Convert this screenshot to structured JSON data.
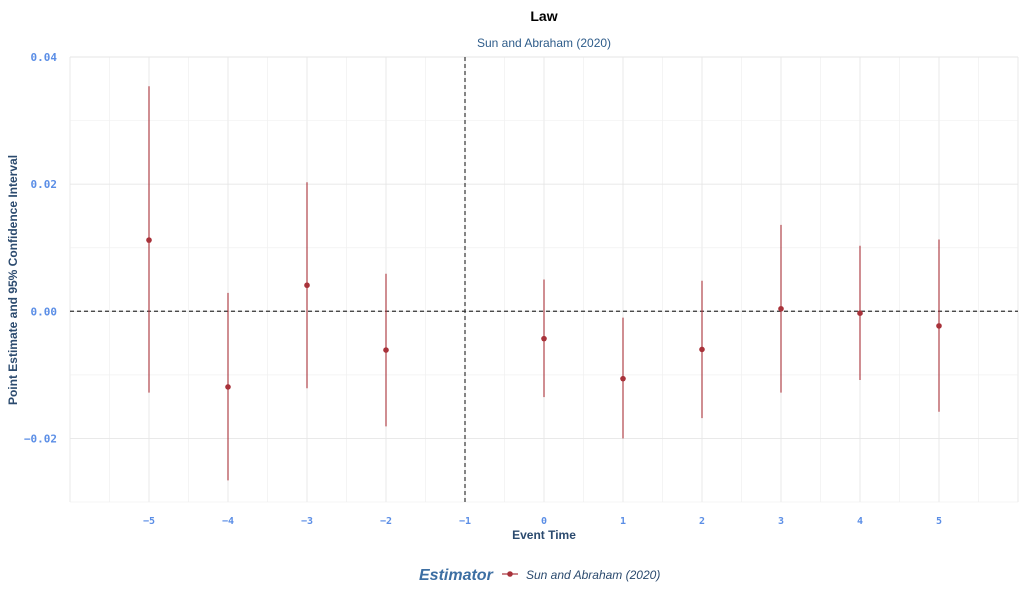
{
  "chart_data": {
    "type": "scatter",
    "title": "Law",
    "subtitle": "Sun and Abraham (2020)",
    "xlabel": "Event Time",
    "ylabel": "Point Estimate and 95% Confidence Interval",
    "xlim": [
      -6,
      6
    ],
    "ylim": [
      -0.03,
      0.04
    ],
    "x_ticks": [
      -5,
      -4,
      -3,
      -2,
      -1,
      0,
      1,
      2,
      3,
      4,
      5
    ],
    "x_tick_labels": [
      "−5",
      "−4",
      "−3",
      "−2",
      "−1",
      "0",
      "1",
      "2",
      "3",
      "4",
      "5"
    ],
    "y_ticks": [
      -0.02,
      0.0,
      0.02,
      0.04
    ],
    "y_tick_labels": [
      "−0.02",
      "0.00",
      "0.02",
      "0.04"
    ],
    "reference_lines": {
      "vertical_x": -1,
      "horizontal_y": 0
    },
    "grid": true,
    "legend": {
      "title": "Estimator",
      "position": "bottom",
      "entries": [
        "Sun and Abraham (2020)"
      ]
    },
    "series": [
      {
        "name": "Sun and Abraham (2020)",
        "color": "#a8323a",
        "points": [
          {
            "x": -5,
            "y": 0.0112,
            "lo": -0.0128,
            "hi": 0.0354
          },
          {
            "x": -4,
            "y": -0.0119,
            "lo": -0.0266,
            "hi": 0.0029
          },
          {
            "x": -3,
            "y": 0.0041,
            "lo": -0.0121,
            "hi": 0.0203
          },
          {
            "x": -2,
            "y": -0.0061,
            "lo": -0.0181,
            "hi": 0.0059
          },
          {
            "x": 0,
            "y": -0.0043,
            "lo": -0.0135,
            "hi": 0.005
          },
          {
            "x": 1,
            "y": -0.0106,
            "lo": -0.02,
            "hi": -0.001
          },
          {
            "x": 2,
            "y": -0.006,
            "lo": -0.0168,
            "hi": 0.0048
          },
          {
            "x": 3,
            "y": 0.0004,
            "lo": -0.0128,
            "hi": 0.0136
          },
          {
            "x": 4,
            "y": -0.0003,
            "lo": -0.0108,
            "hi": 0.0103
          },
          {
            "x": 5,
            "y": -0.0023,
            "lo": -0.0158,
            "hi": 0.0113
          }
        ]
      }
    ]
  }
}
